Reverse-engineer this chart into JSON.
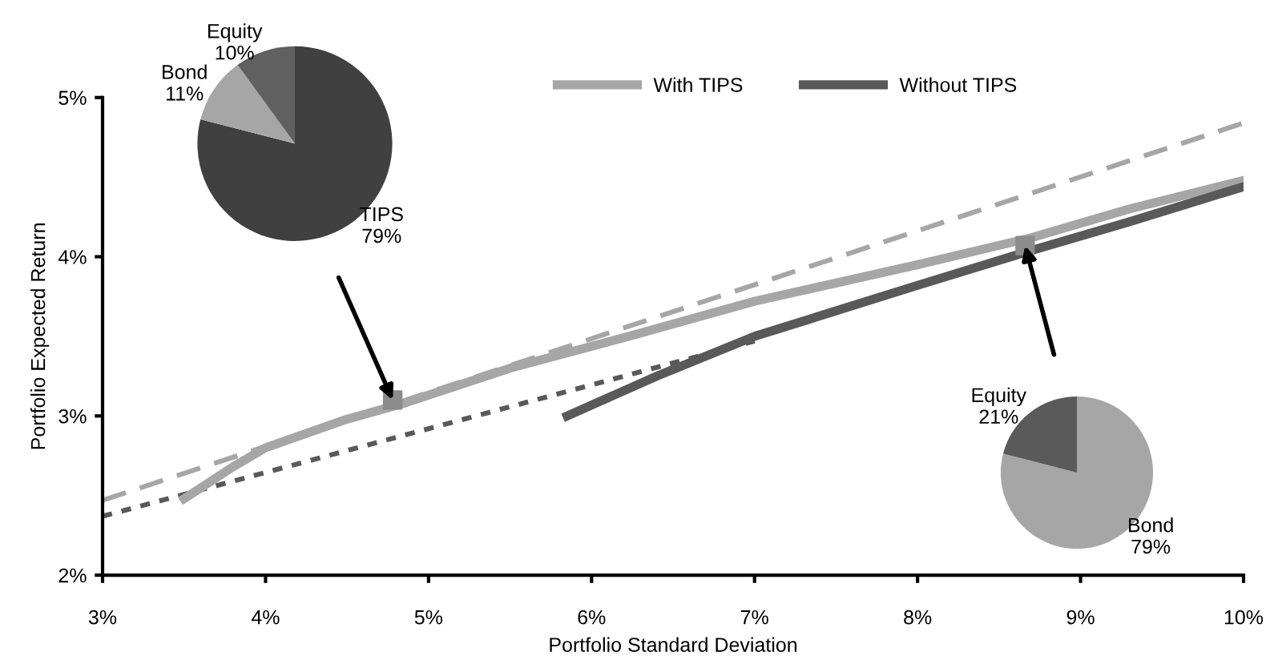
{
  "chart_data": [
    {
      "type": "line",
      "xlabel": "Portfolio Standard Deviation",
      "ylabel": "Portfolio Expected Return",
      "xlim": [
        3,
        10
      ],
      "ylim": [
        2,
        5
      ],
      "xticks": [
        {
          "value": 3,
          "label": "3%"
        },
        {
          "value": 4,
          "label": "4%"
        },
        {
          "value": 5,
          "label": "5%"
        },
        {
          "value": 6,
          "label": "6%"
        },
        {
          "value": 7,
          "label": "7%"
        },
        {
          "value": 8,
          "label": "8%"
        },
        {
          "value": 9,
          "label": "9%"
        },
        {
          "value": 10,
          "label": "10%"
        }
      ],
      "yticks": [
        {
          "value": 2,
          "label": "2%"
        },
        {
          "value": 3,
          "label": "3%"
        },
        {
          "value": 4,
          "label": "4%"
        },
        {
          "value": 5,
          "label": "5%"
        }
      ],
      "grid": false,
      "legend": "top",
      "series": [
        {
          "type": "line",
          "line_style": "dashed",
          "color": "#a6a6a6",
          "x": [
            3.0,
            10.0
          ],
          "values": [
            2.47,
            4.84
          ]
        },
        {
          "type": "line",
          "line_style": "dotted",
          "color": "#595959",
          "x": [
            3.0,
            7.0
          ],
          "values": [
            2.37,
            3.47
          ]
        },
        {
          "type": "line",
          "name": "With TIPS",
          "color": "#a6a6a6",
          "x": [
            3.5,
            3.8,
            4.0,
            4.5,
            4.85,
            5.5,
            6.3,
            7.0,
            8.0,
            8.7,
            9.3,
            10.0
          ],
          "values": [
            2.48,
            2.68,
            2.8,
            2.98,
            3.08,
            3.3,
            3.52,
            3.72,
            3.95,
            4.12,
            4.3,
            4.48
          ]
        },
        {
          "type": "line",
          "name": "Without TIPS",
          "color": "#595959",
          "x": [
            5.85,
            6.4,
            7.0,
            8.0,
            8.7,
            9.3,
            10.0
          ],
          "values": [
            3.0,
            3.25,
            3.5,
            3.82,
            4.04,
            4.22,
            4.44
          ]
        },
        {
          "type": "scatter",
          "marker": "square",
          "color": "#8c8c8c",
          "x": [
            4.78,
            8.66
          ],
          "values": [
            3.1,
            4.07
          ]
        }
      ]
    },
    {
      "type": "pie",
      "categories": [
        "TIPS",
        "Bond",
        "Equity"
      ],
      "values": [
        79,
        11,
        10
      ],
      "value_labels": [
        "79%",
        "11%",
        "10%"
      ],
      "colors": [
        "#404040",
        "#a6a6a6",
        "#606060"
      ]
    },
    {
      "type": "pie",
      "categories": [
        "Bond",
        "Equity"
      ],
      "values": [
        79,
        21
      ],
      "value_labels": [
        "79%",
        "21%"
      ],
      "colors": [
        "#a6a6a6",
        "#5a5a5a"
      ]
    }
  ]
}
